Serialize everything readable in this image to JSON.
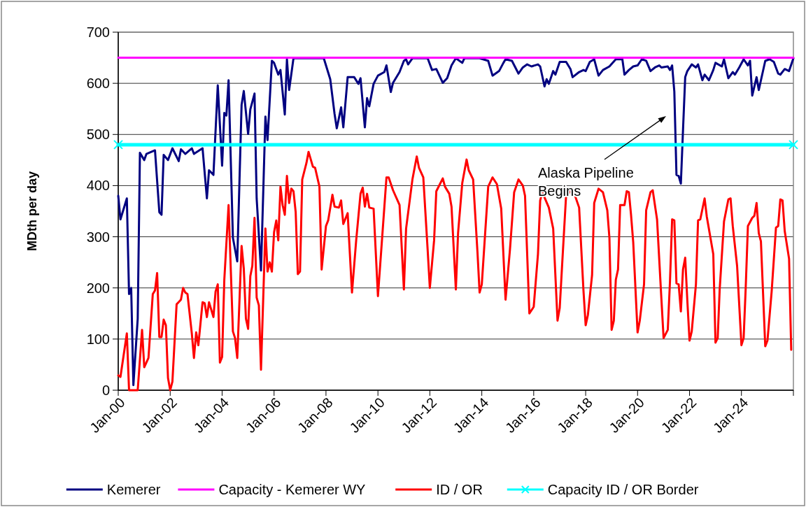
{
  "chart_data": {
    "type": "line",
    "ylabel": "MDth per day",
    "ylim": [
      0,
      700
    ],
    "yticks": [
      0,
      100,
      200,
      300,
      400,
      500,
      600,
      700
    ],
    "xlim": [
      "2000-01",
      "2026-01"
    ],
    "xticks": [
      {
        "value": "2000-01",
        "label": "Jan-00"
      },
      {
        "value": "2002-01",
        "label": "Jan-02"
      },
      {
        "value": "2004-01",
        "label": "Jan-04"
      },
      {
        "value": "2006-01",
        "label": "Jan-06"
      },
      {
        "value": "2008-01",
        "label": "Jan-08"
      },
      {
        "value": "2010-01",
        "label": "Jan-10"
      },
      {
        "value": "2012-01",
        "label": "Jan-12"
      },
      {
        "value": "2014-01",
        "label": "Jan-14"
      },
      {
        "value": "2016-01",
        "label": "Jan-16"
      },
      {
        "value": "2018-01",
        "label": "Jan-18"
      },
      {
        "value": "2020-01",
        "label": "Jan-20"
      },
      {
        "value": "2022-01",
        "label": "Jan-22"
      },
      {
        "value": "2024-01",
        "label": "Jan-24"
      },
      {
        "value": "2026-01",
        "label": null
      }
    ],
    "grid": "y",
    "legend": "bottom",
    "marker": "none",
    "annotations": [
      "Alaska Pipeline Begins"
    ],
    "series": [
      {
        "name": "Kemerer",
        "color": "#000080",
        "x": [
          "2000-01",
          "2000-02",
          "2000-05",
          "2000-06",
          "2000-07",
          "2000-08",
          "2000-10",
          "2000-11",
          "2001-01",
          "2001-02",
          "2001-06",
          "2001-08",
          "2001-09",
          "2001-10",
          "2001-12",
          "2002-02",
          "2002-05",
          "2002-06",
          "2002-08",
          "2002-11",
          "2002-12",
          "2003-04",
          "2003-06",
          "2003-07",
          "2003-09",
          "2003-11",
          "2004-01",
          "2004-02",
          "2004-03",
          "2004-04",
          "2004-06",
          "2004-08",
          "2004-10",
          "2004-11",
          "2005-01",
          "2005-02",
          "2005-04",
          "2005-05",
          "2005-07",
          "2005-09",
          "2005-10",
          "2005-12",
          "2006-01",
          "2006-03",
          "2006-04",
          "2006-06",
          "2006-07",
          "2006-08",
          "2006-10",
          "2007-12",
          "2008-03",
          "2008-05",
          "2008-06",
          "2008-08",
          "2008-09",
          "2008-11",
          "2009-02",
          "2009-04",
          "2009-05",
          "2009-07",
          "2009-08",
          "2009-09",
          "2009-11",
          "2010-01",
          "2010-04",
          "2010-05",
          "2010-07",
          "2010-08",
          "2010-11",
          "2011-01",
          "2011-02",
          "2011-03",
          "2011-05",
          "2011-12",
          "2012-02",
          "2012-04",
          "2012-07",
          "2012-09",
          "2012-11",
          "2013-01",
          "2013-04",
          "2013-05",
          "2013-12",
          "2014-04",
          "2014-06",
          "2014-09",
          "2014-11",
          "2014-12",
          "2015-03",
          "2015-06",
          "2015-08",
          "2015-10",
          "2015-12",
          "2016-03",
          "2016-04",
          "2016-06",
          "2016-07",
          "2016-08",
          "2016-10",
          "2016-11",
          "2017-01",
          "2017-04",
          "2017-06",
          "2017-07",
          "2017-10",
          "2017-12",
          "2018-01",
          "2018-03",
          "2018-05",
          "2018-07",
          "2018-09",
          "2018-12",
          "2019-03",
          "2019-06",
          "2019-07",
          "2019-09",
          "2019-11",
          "2020-01",
          "2020-03",
          "2020-05",
          "2020-07",
          "2020-09",
          "2020-11",
          "2020-12",
          "2021-03",
          "2021-04",
          "2021-05",
          "2021-06",
          "2021-07",
          "2021-08",
          "2021-09",
          "2021-10",
          "2021-11",
          "2021-12",
          "2022-02",
          "2022-04",
          "2022-05",
          "2022-07",
          "2022-08",
          "2022-10",
          "2022-12",
          "2023-01",
          "2023-04",
          "2023-05",
          "2023-07",
          "2023-09",
          "2023-10",
          "2023-12",
          "2024-02",
          "2024-04",
          "2024-05",
          "2024-06",
          "2024-08",
          "2024-09",
          "2024-12",
          "2025-02",
          "2025-04",
          "2025-06",
          "2025-07",
          "2025-09",
          "2025-11",
          "2026-01"
        ],
        "values": [
          380,
          334,
          375,
          188,
          200,
          10,
          140,
          464,
          450,
          462,
          469,
          348,
          343,
          460,
          450,
          473,
          448,
          471,
          462,
          473,
          462,
          473,
          375,
          430,
          421,
          596,
          439,
          542,
          537,
          606,
          298,
          252,
          558,
          585,
          501,
          549,
          580,
          375,
          234,
          535,
          489,
          644,
          640,
          617,
          626,
          539,
          647,
          587,
          649,
          649,
          608,
          540,
          512,
          553,
          514,
          612,
          612,
          599,
          610,
          514,
          571,
          555,
          599,
          615,
          622,
          635,
          583,
          601,
          622,
          644,
          647,
          637,
          649,
          649,
          626,
          628,
          601,
          610,
          635,
          649,
          640,
          649,
          649,
          644,
          615,
          624,
          640,
          647,
          644,
          619,
          631,
          637,
          633,
          637,
          633,
          594,
          608,
          599,
          624,
          617,
          642,
          642,
          628,
          612,
          622,
          626,
          624,
          642,
          647,
          615,
          626,
          633,
          647,
          647,
          617,
          626,
          633,
          635,
          647,
          644,
          624,
          631,
          635,
          631,
          633,
          626,
          635,
          584,
          421,
          419,
          404,
          508,
          612,
          624,
          637,
          631,
          637,
          606,
          617,
          606,
          626,
          640,
          633,
          647,
          610,
          622,
          617,
          631,
          647,
          635,
          644,
          576,
          612,
          587,
          644,
          647,
          642,
          619,
          617,
          628,
          624,
          649
        ]
      },
      {
        "name": "Capacity - Kemerer WY",
        "color": "#ff00ff",
        "x": [
          "2000-01",
          "2026-01"
        ],
        "values": [
          650,
          650
        ]
      },
      {
        "name": "ID / OR",
        "color": "#ff0000",
        "x": [
          "2000-01",
          "2000-02",
          "2000-05",
          "2000-06",
          "2000-10",
          "2000-12",
          "2001-01",
          "2001-03",
          "2001-05",
          "2001-06",
          "2001-07",
          "2001-08",
          "2001-09",
          "2001-10",
          "2001-11",
          "2001-12",
          "2002-01",
          "2002-02",
          "2002-04",
          "2002-06",
          "2002-07",
          "2002-08",
          "2002-09",
          "2002-11",
          "2002-12",
          "2003-01",
          "2003-02",
          "2003-04",
          "2003-05",
          "2003-06",
          "2003-07",
          "2003-09",
          "2003-10",
          "2003-11",
          "2003-12",
          "2004-01",
          "2004-02",
          "2004-04",
          "2004-06",
          "2004-07",
          "2004-08",
          "2004-10",
          "2004-11",
          "2004-12",
          "2005-01",
          "2005-02",
          "2005-03",
          "2005-04",
          "2005-05",
          "2005-06",
          "2005-07",
          "2005-09",
          "2005-10",
          "2005-11",
          "2005-12",
          "2006-01",
          "2006-02",
          "2006-03",
          "2006-04",
          "2006-05",
          "2006-06",
          "2006-07",
          "2006-08",
          "2006-09",
          "2006-10",
          "2006-11",
          "2006-12",
          "2007-01",
          "2007-02",
          "2007-04",
          "2007-05",
          "2007-07",
          "2007-08",
          "2007-10",
          "2007-11",
          "2008-01",
          "2008-02",
          "2008-04",
          "2008-05",
          "2008-07",
          "2008-08",
          "2008-09",
          "2008-11",
          "2009-01",
          "2009-03",
          "2009-05",
          "2009-06",
          "2009-07",
          "2009-08",
          "2009-09",
          "2009-11",
          "2010-01",
          "2010-03",
          "2010-05",
          "2010-06",
          "2010-08",
          "2010-11",
          "2011-01",
          "2011-02",
          "2011-05",
          "2011-07",
          "2011-08",
          "2011-10",
          "2011-12",
          "2012-01",
          "2012-03",
          "2012-04",
          "2012-07",
          "2012-08",
          "2012-10",
          "2012-11",
          "2013-01",
          "2013-02",
          "2013-04",
          "2013-06",
          "2013-07",
          "2013-09",
          "2013-11",
          "2013-12",
          "2014-01",
          "2014-04",
          "2014-06",
          "2014-08",
          "2014-10",
          "2014-12",
          "2015-02",
          "2015-04",
          "2015-06",
          "2015-08",
          "2015-09",
          "2015-11",
          "2016-01",
          "2016-03",
          "2016-04",
          "2016-05",
          "2016-08",
          "2016-10",
          "2016-12",
          "2017-01",
          "2017-02",
          "2017-04",
          "2017-05",
          "2017-07",
          "2017-10",
          "2017-12",
          "2018-01",
          "2018-02",
          "2018-04",
          "2018-05",
          "2018-07",
          "2018-09",
          "2018-11",
          "2018-12",
          "2019-01",
          "2019-02",
          "2019-03",
          "2019-04",
          "2019-05",
          "2019-07",
          "2019-08",
          "2019-09",
          "2019-10",
          "2019-11",
          "2020-01",
          "2020-02",
          "2020-04",
          "2020-05",
          "2020-07",
          "2020-08",
          "2020-10",
          "2020-12",
          "2021-01",
          "2021-03",
          "2021-04",
          "2021-05",
          "2021-06",
          "2021-07",
          "2021-08",
          "2021-09",
          "2021-10",
          "2021-11",
          "2021-12",
          "2022-01",
          "2022-02",
          "2022-04",
          "2022-05",
          "2022-06",
          "2022-08",
          "2022-09",
          "2022-12",
          "2023-01",
          "2023-02",
          "2023-03",
          "2023-05",
          "2023-07",
          "2023-08",
          "2023-09",
          "2023-11",
          "2024-01",
          "2024-02",
          "2024-03",
          "2024-04",
          "2024-06",
          "2024-07",
          "2024-08",
          "2024-09",
          "2024-10",
          "2024-12",
          "2025-01",
          "2025-03",
          "2025-05",
          "2025-06",
          "2025-07",
          "2025-08",
          "2025-09",
          "2025-11",
          "2025-12"
        ],
        "values": [
          29,
          26,
          111,
          0,
          0,
          118,
          45,
          63,
          188,
          195,
          229,
          104,
          104,
          138,
          127,
          24,
          0,
          17,
          168,
          177,
          200,
          191,
          188,
          111,
          63,
          113,
          88,
          172,
          170,
          143,
          172,
          143,
          193,
          207,
          54,
          65,
          216,
          362,
          115,
          102,
          63,
          282,
          238,
          140,
          120,
          223,
          243,
          337,
          181,
          166,
          40,
          316,
          232,
          250,
          232,
          309,
          332,
          293,
          398,
          362,
          343,
          419,
          366,
          394,
          389,
          348,
          227,
          232,
          412,
          444,
          466,
          437,
          435,
          398,
          236,
          321,
          332,
          382,
          359,
          357,
          371,
          325,
          346,
          191,
          293,
          384,
          396,
          359,
          384,
          357,
          355,
          184,
          298,
          416,
          416,
          391,
          362,
          197,
          316,
          412,
          457,
          435,
          416,
          275,
          200,
          293,
          389,
          414,
          398,
          384,
          359,
          197,
          307,
          405,
          451,
          430,
          412,
          270,
          191,
          207,
          398,
          416,
          403,
          355,
          177,
          275,
          387,
          412,
          400,
          380,
          150,
          163,
          266,
          371,
          387,
          357,
          316,
          136,
          161,
          238,
          382,
          384,
          394,
          357,
          195,
          127,
          147,
          225,
          366,
          394,
          387,
          352,
          298,
          118,
          136,
          216,
          236,
          362,
          362,
          389,
          387,
          343,
          289,
          113,
          136,
          207,
          352,
          387,
          391,
          334,
          179,
          102,
          118,
          213,
          334,
          332,
          209,
          207,
          154,
          236,
          259,
          175,
          97,
          115,
          207,
          332,
          334,
          375,
          339,
          266,
          93,
          102,
          197,
          330,
          373,
          375,
          321,
          243,
          88,
          102,
          200,
          321,
          337,
          341,
          366,
          307,
          291,
          86,
          97,
          193,
          318,
          321,
          373,
          371,
          311,
          257,
          79
        ]
      },
      {
        "name": "Capacity ID / OR Border",
        "color": "#00ffff",
        "marker": "cross",
        "x": [
          "2000-01",
          "2026-01"
        ],
        "values": [
          480,
          480
        ]
      }
    ]
  }
}
